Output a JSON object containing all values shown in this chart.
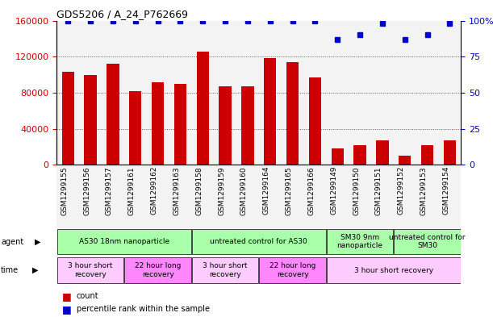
{
  "title": "GDS5206 / A_24_P762669",
  "samples": [
    "GSM1299155",
    "GSM1299156",
    "GSM1299157",
    "GSM1299161",
    "GSM1299162",
    "GSM1299163",
    "GSM1299158",
    "GSM1299159",
    "GSM1299160",
    "GSM1299164",
    "GSM1299165",
    "GSM1299166",
    "GSM1299149",
    "GSM1299150",
    "GSM1299151",
    "GSM1299152",
    "GSM1299153",
    "GSM1299154"
  ],
  "counts": [
    103000,
    100000,
    112000,
    82000,
    92000,
    90000,
    126000,
    87000,
    87000,
    118000,
    114000,
    97000,
    18000,
    22000,
    27000,
    10000,
    22000,
    27000
  ],
  "percentiles": [
    100,
    100,
    100,
    100,
    100,
    100,
    100,
    100,
    100,
    100,
    100,
    100,
    87,
    90,
    98,
    87,
    90,
    98
  ],
  "bar_color": "#cc0000",
  "dot_color": "#0000cc",
  "ylim_left": [
    0,
    160000
  ],
  "ylim_right": [
    0,
    100
  ],
  "yticks_left": [
    0,
    40000,
    80000,
    120000,
    160000
  ],
  "yticks_right": [
    0,
    25,
    50,
    75,
    100
  ],
  "ytick_labels_right": [
    "0",
    "25",
    "50",
    "75",
    "100%"
  ],
  "agent_row": [
    {
      "label": "AS30 18nm nanoparticle",
      "start": 0,
      "end": 6,
      "color": "#aaffaa"
    },
    {
      "label": "untreated control for AS30",
      "start": 6,
      "end": 12,
      "color": "#aaffaa"
    },
    {
      "label": "SM30 9nm\nnanoparticle",
      "start": 12,
      "end": 15,
      "color": "#aaffaa"
    },
    {
      "label": "untreated control for\nSM30",
      "start": 15,
      "end": 18,
      "color": "#aaffaa"
    }
  ],
  "time_row": [
    {
      "label": "3 hour short\nrecovery",
      "start": 0,
      "end": 3,
      "color": "#ffccff"
    },
    {
      "label": "22 hour long\nrecovery",
      "start": 3,
      "end": 6,
      "color": "#ff88ff"
    },
    {
      "label": "3 hour short\nrecovery",
      "start": 6,
      "end": 9,
      "color": "#ffccff"
    },
    {
      "label": "22 hour long\nrecovery",
      "start": 9,
      "end": 12,
      "color": "#ff88ff"
    },
    {
      "label": "3 hour short recovery",
      "start": 12,
      "end": 18,
      "color": "#ffccff"
    }
  ],
  "grid_color": "#555555",
  "bg_color": "#ffffff",
  "col_bg_color": "#dddddd"
}
